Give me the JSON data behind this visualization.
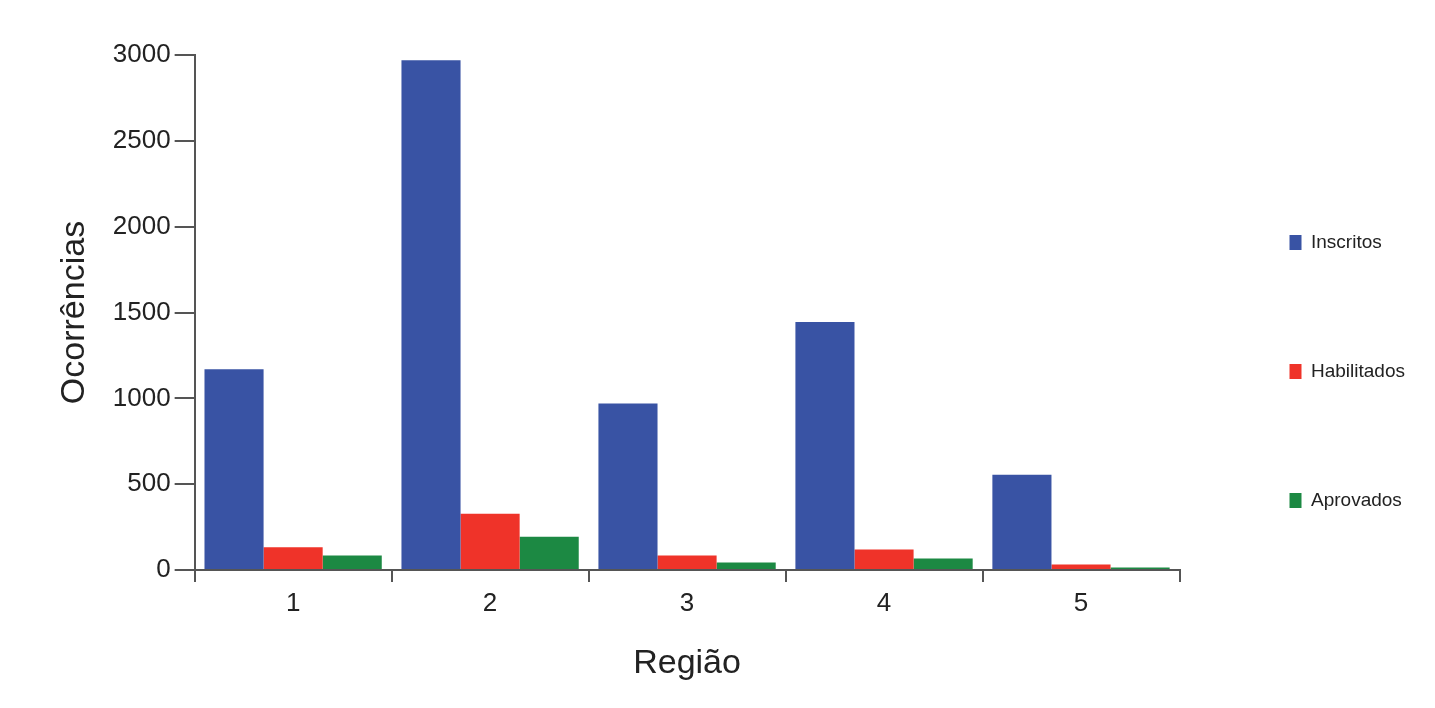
{
  "chart_data": {
    "type": "bar",
    "xlabel": "Região",
    "ylabel": "Ocorrências",
    "categories": [
      "1",
      "2",
      "3",
      "4",
      "5"
    ],
    "series": [
      {
        "name": "Inscritos",
        "color": "#3953a4",
        "values": [
          1170,
          2970,
          970,
          1445,
          555
        ]
      },
      {
        "name": "Habilitados",
        "color": "#ef3329",
        "values": [
          133,
          328,
          84,
          120,
          32
        ]
      },
      {
        "name": "Aprovados",
        "color": "#1c8943",
        "values": [
          84,
          193,
          43,
          67,
          14
        ]
      }
    ],
    "ylim": [
      0,
      3000
    ],
    "yticks": [
      0,
      500,
      1000,
      1500,
      2000,
      2500,
      3000
    ],
    "grid": false,
    "legend": "right"
  }
}
